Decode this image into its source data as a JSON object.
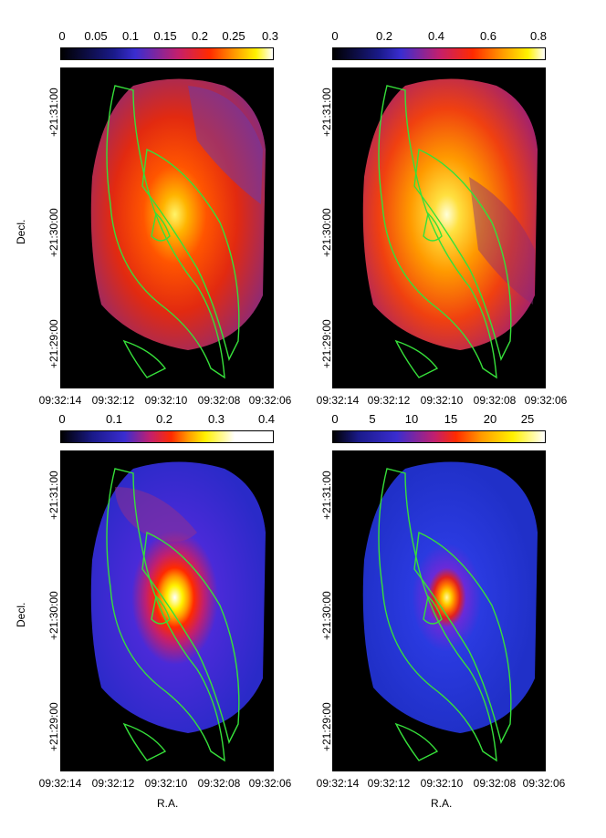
{
  "panels": [
    {
      "id": "tl",
      "colorbar": {
        "ticks": [
          "0",
          "0.05",
          "0.1",
          "0.15",
          "0.2",
          "0.25",
          "0.3"
        ],
        "scheme": "hot"
      }
    },
    {
      "id": "tr",
      "colorbar": {
        "ticks": [
          "0",
          "0.2",
          "0.4",
          "0.6",
          "0.8"
        ],
        "scheme": "hot"
      }
    },
    {
      "id": "bl",
      "colorbar": {
        "ticks": [
          "0",
          "0.1",
          "0.2",
          "0.3",
          "0.4"
        ],
        "scheme": "hot"
      }
    },
    {
      "id": "br",
      "colorbar": {
        "ticks": [
          "0",
          "5",
          "10",
          "15",
          "20",
          "25"
        ],
        "scheme": "hot"
      }
    }
  ],
  "axes": {
    "ra_ticks": [
      "09:32:14",
      "09:32:12",
      "09:32:10",
      "09:32:08",
      "09:32:06"
    ],
    "dec_ticks": [
      "+21:31:00",
      "+21:30:00",
      "+21:29:00"
    ],
    "xlabel": "R.A.",
    "ylabel": "Decl."
  },
  "colors": {
    "contour": "#36e03a",
    "background": "#000000"
  }
}
